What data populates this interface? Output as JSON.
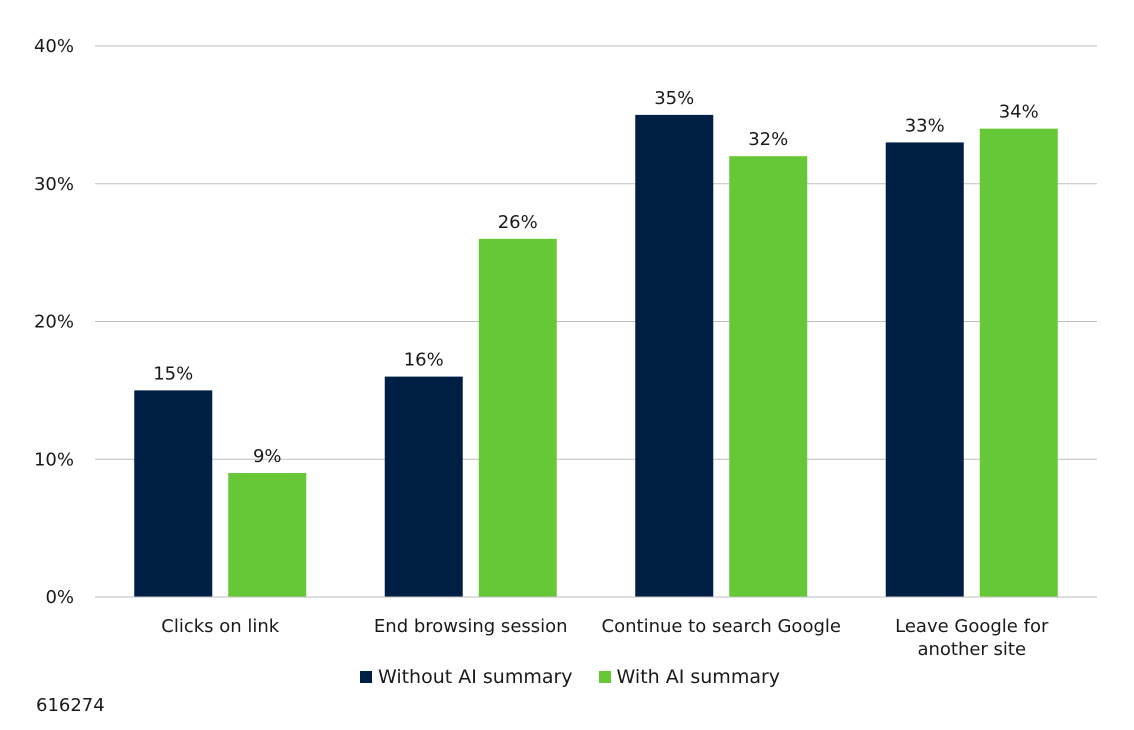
{
  "chart_data": {
    "type": "bar",
    "categories": [
      [
        "Clicks on link"
      ],
      [
        "End browsing session"
      ],
      [
        "Continue to search Google"
      ],
      [
        "Leave Google for",
        "another site"
      ]
    ],
    "series": [
      {
        "name": "Without AI summary",
        "color": "#001f45",
        "values": [
          15,
          16,
          35,
          33
        ],
        "labels": [
          "15%",
          "16%",
          "35%",
          "33%"
        ]
      },
      {
        "name": "With AI summary",
        "color": "#66c837",
        "values": [
          9,
          26,
          32,
          34
        ],
        "labels": [
          "9%",
          "26%",
          "32%",
          "34%"
        ]
      }
    ],
    "y_ticks": [
      0,
      10,
      20,
      30,
      40
    ],
    "y_tick_labels": [
      "0%",
      "10%",
      "20%",
      "30%",
      "40%"
    ],
    "ylim": [
      0,
      40
    ],
    "grid": true,
    "legend_position": "bottom"
  },
  "figure_id": "616274"
}
